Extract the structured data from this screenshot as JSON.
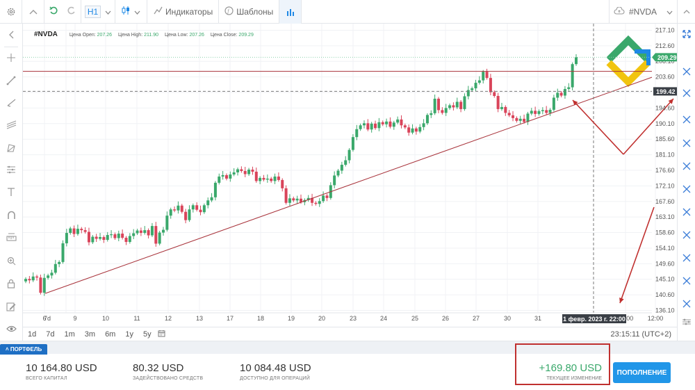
{
  "toolbar": {
    "timeframe": "H1",
    "indicators_label": "Индикаторы",
    "templates_label": "Шаблоны",
    "symbol": "#NVDA"
  },
  "legend": {
    "symbol": "#NVDA",
    "open_label": "Цена Open:",
    "open": "207.26",
    "high_label": "Цена High:",
    "high": "211.90",
    "low_label": "Цена Low:",
    "low": "207.26",
    "close_label": "Цена Close:",
    "close": "209.29"
  },
  "chart_data": {
    "type": "candlestick",
    "instrument": "#NVDA",
    "y_ticks": [
      "217.10",
      "212.60",
      "208.10",
      "203.60",
      "199.10",
      "194.60",
      "190.10",
      "185.60",
      "181.10",
      "176.60",
      "172.10",
      "167.60",
      "163.10",
      "158.60",
      "154.10",
      "149.60",
      "145.10",
      "140.60",
      "136.10"
    ],
    "x_ticks": [
      "6",
      "7d",
      "9",
      "10",
      "11",
      "12",
      "13",
      "17",
      "18",
      "19",
      "20",
      "23",
      "24",
      "25",
      "26",
      "27",
      "30",
      "31",
      "22:00",
      "12:00"
    ],
    "ylim": [
      135.4,
      219.0
    ],
    "last_price": "209.29",
    "crosshair_price": "199.42",
    "crosshair_time": "1 февр. 2023 г. 22:00",
    "horizontal_line": 205.2,
    "trendline": {
      "from": [
        "Jan 6",
        141.0
      ],
      "to": [
        "Feb 2",
        203.5
      ]
    },
    "candles": [
      [
        144.5,
        145.2
      ],
      [
        145.2,
        144.8
      ],
      [
        144.8,
        145.9
      ],
      [
        145.9,
        145.6
      ],
      [
        145.6,
        141.2
      ],
      [
        141.2,
        145.5
      ],
      [
        145.5,
        146.2
      ],
      [
        146.2,
        147.0
      ],
      [
        147.0,
        149.5
      ],
      [
        149.5,
        150.1
      ],
      [
        150.1,
        155.5
      ],
      [
        155.5,
        158.5
      ],
      [
        158.5,
        159.8
      ],
      [
        159.8,
        158.2
      ],
      [
        158.2,
        159.7
      ],
      [
        159.7,
        159.3
      ],
      [
        159.3,
        158.8
      ],
      [
        158.8,
        155.8
      ],
      [
        155.8,
        157.4
      ],
      [
        157.4,
        156.8
      ],
      [
        156.8,
        157.3
      ],
      [
        157.3,
        156.5
      ],
      [
        156.5,
        157.9
      ],
      [
        157.9,
        158.1
      ],
      [
        158.1,
        157.0
      ],
      [
        157.0,
        158.3
      ],
      [
        158.3,
        157.1
      ],
      [
        157.1,
        155.9
      ],
      [
        155.9,
        157.6
      ],
      [
        157.6,
        158.4
      ],
      [
        158.4,
        159.2
      ],
      [
        159.2,
        158.5
      ],
      [
        158.5,
        159.3
      ],
      [
        159.3,
        157.8
      ],
      [
        157.8,
        160.5
      ],
      [
        160.5,
        155.4
      ],
      [
        155.4,
        158.6
      ],
      [
        158.6,
        159.4
      ],
      [
        159.4,
        163.5
      ],
      [
        163.5,
        165.3
      ],
      [
        165.3,
        165.0
      ],
      [
        165.0,
        166.4
      ],
      [
        166.4,
        164.6
      ],
      [
        164.6,
        162.2
      ],
      [
        162.2,
        165.3
      ],
      [
        165.3,
        166.5
      ],
      [
        166.5,
        165.2
      ],
      [
        165.2,
        164.5
      ],
      [
        164.5,
        166.5
      ],
      [
        166.5,
        167.9
      ],
      [
        167.9,
        168.8
      ],
      [
        168.8,
        173.0
      ],
      [
        173.0,
        174.8
      ],
      [
        174.8,
        175.2
      ],
      [
        175.2,
        174.2
      ],
      [
        174.2,
        175.4
      ],
      [
        175.4,
        176.0
      ],
      [
        176.0,
        176.9
      ],
      [
        176.9,
        176.4
      ],
      [
        176.4,
        175.5
      ],
      [
        175.5,
        176.8
      ],
      [
        176.8,
        176.2
      ],
      [
        176.2,
        173.5
      ],
      [
        173.5,
        174.4
      ],
      [
        174.4,
        173.9
      ],
      [
        173.9,
        174.2
      ],
      [
        174.2,
        173.5
      ],
      [
        173.5,
        174.8
      ],
      [
        174.8,
        173.8
      ],
      [
        173.8,
        171.4
      ],
      [
        171.4,
        167.2
      ],
      [
        167.2,
        168.5
      ],
      [
        168.5,
        167.9
      ],
      [
        167.9,
        168.4
      ],
      [
        168.4,
        167.4
      ],
      [
        167.4,
        168.0
      ],
      [
        168.0,
        168.6
      ],
      [
        168.6,
        167.2
      ],
      [
        167.2,
        166.9
      ],
      [
        166.9,
        167.7
      ],
      [
        167.7,
        169.3
      ],
      [
        169.3,
        168.6
      ],
      [
        168.6,
        172.3
      ],
      [
        172.3,
        175.1
      ],
      [
        175.1,
        176.5
      ],
      [
        176.5,
        178.2
      ],
      [
        178.2,
        179.5
      ],
      [
        179.5,
        182.5
      ],
      [
        182.5,
        186.2
      ],
      [
        186.2,
        188.5
      ],
      [
        188.5,
        189.6
      ],
      [
        189.6,
        190.2
      ],
      [
        190.2,
        188.4
      ],
      [
        188.4,
        190.1
      ],
      [
        190.1,
        188.8
      ],
      [
        188.8,
        190.5
      ],
      [
        190.5,
        189.9
      ],
      [
        189.9,
        190.7
      ],
      [
        190.7,
        189.2
      ],
      [
        189.2,
        190.4
      ],
      [
        190.4,
        191.3
      ],
      [
        191.3,
        189.6
      ],
      [
        189.6,
        189.0
      ],
      [
        189.0,
        187.5
      ],
      [
        187.5,
        188.7
      ],
      [
        188.7,
        187.8
      ],
      [
        187.8,
        189.1
      ],
      [
        189.1,
        190.2
      ],
      [
        190.2,
        192.6
      ],
      [
        192.6,
        193.1
      ],
      [
        193.1,
        197.3
      ],
      [
        197.3,
        194.0
      ],
      [
        194.0,
        193.2
      ],
      [
        193.2,
        194.6
      ],
      [
        194.6,
        195.4
      ],
      [
        195.4,
        194.8
      ],
      [
        194.8,
        196.4
      ],
      [
        196.4,
        194.3
      ],
      [
        194.3,
        198.0
      ],
      [
        198.0,
        199.8
      ],
      [
        199.8,
        200.3
      ],
      [
        200.3,
        201.9
      ],
      [
        201.9,
        202.6
      ],
      [
        202.6,
        205.1
      ],
      [
        205.1,
        203.3
      ],
      [
        203.3,
        199.2
      ],
      [
        199.2,
        198.1
      ],
      [
        198.1,
        194.3
      ],
      [
        194.3,
        194.9
      ],
      [
        194.9,
        193.2
      ],
      [
        193.2,
        192.5
      ],
      [
        192.5,
        191.7
      ],
      [
        191.7,
        190.9
      ],
      [
        190.9,
        191.5
      ],
      [
        191.5,
        190.6
      ],
      [
        190.6,
        193.0
      ],
      [
        193.0,
        193.8
      ],
      [
        193.8,
        192.9
      ],
      [
        192.9,
        193.7
      ],
      [
        193.7,
        194.0
      ],
      [
        194.0,
        193.2
      ],
      [
        193.2,
        194.1
      ],
      [
        194.1,
        197.6
      ],
      [
        197.6,
        199.0
      ],
      [
        199.0,
        198.2
      ],
      [
        198.2,
        200.1
      ],
      [
        200.1,
        200.6
      ],
      [
        200.6,
        207.3
      ],
      [
        207.3,
        209.3
      ]
    ]
  },
  "annotations": {
    "watermark": "logo"
  },
  "range_buttons": [
    "1d",
    "7d",
    "1m",
    "3m",
    "6m",
    "1y",
    "5y"
  ],
  "clock": "23:15:11 (UTC+2)",
  "portfolio": {
    "tab_label": "ПОРТФЕЛЬ",
    "capital_value": "10 164.80 USD",
    "capital_label": "ВСЕГО КАПИТАЛ",
    "used_value": "80.32 USD",
    "used_label": "ЗАДЕЙСТВОВАНО СРЕДСТВ",
    "available_value": "10 084.48 USD",
    "available_label": "ДОСТУПНО ДЛЯ ОПЕРАЦИЙ",
    "change_value": "+169.80 USD",
    "change_label": "ТЕКУЩЕЕ ИЗМЕНЕНИЕ",
    "topup_label": "ПОПОЛНЕНИЕ"
  },
  "colors": {
    "up": "#3aa86b",
    "down": "#d9445a",
    "accent": "#1e88e5",
    "highlight": "#c0302f"
  }
}
